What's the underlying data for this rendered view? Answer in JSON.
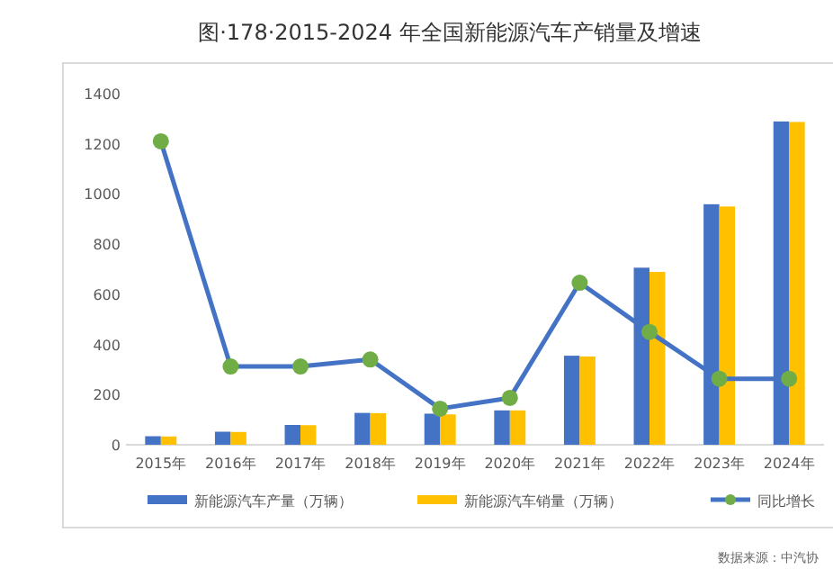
{
  "chart_data": {
    "type": "bar",
    "title": "图·178·2015-2024 年全国新能源汽车产销量及增速",
    "categories": [
      "2015年",
      "2016年",
      "2017年",
      "2018年",
      "2019年",
      "2020年",
      "2021年",
      "2022年",
      "2023年",
      "2024年"
    ],
    "series": [
      {
        "name": "新能源汽车产量（万辆）",
        "color": "#4472c4",
        "values": [
          34,
          52,
          79,
          127,
          124,
          137,
          355,
          706,
          959,
          1289
        ]
      },
      {
        "name": "新能源汽车销量（万辆）",
        "color": "#ffc000",
        "values": [
          33,
          51,
          78,
          126,
          121,
          137,
          352,
          689,
          950,
          1287
        ]
      },
      {
        "name": "同比增长",
        "type": "line",
        "color": "#4472c4",
        "values": [
          1210,
          312,
          312,
          340,
          144,
          187,
          646,
          450,
          263,
          263
        ]
      }
    ],
    "ylim": [
      0,
      1400
    ],
    "yticks": [
      0,
      200,
      400,
      600,
      800,
      1000,
      1200,
      1400
    ],
    "marker": "circle",
    "legend": "bottom",
    "annotations": [
      "数据来源：中汽协"
    ]
  }
}
